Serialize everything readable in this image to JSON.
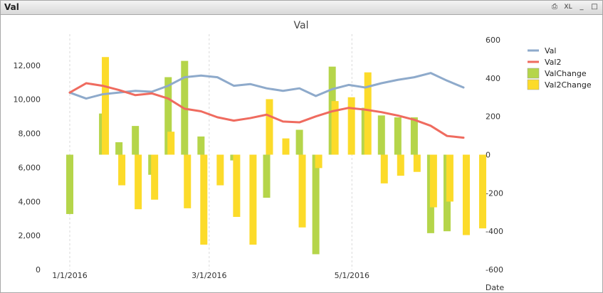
{
  "window": {
    "title": "Val",
    "buttons": {
      "print_icon": "⎙",
      "xl_label": "XL",
      "minimize_icon": "_",
      "maximize_icon": "□"
    }
  },
  "colors": {
    "val": "#8eaacb",
    "val2": "#ef6b5f",
    "valchange": "#b5d54a",
    "val2change": "#fcdb2a",
    "grid": "#d9d9d9"
  },
  "chart_data": {
    "type": "combo",
    "title": "Val",
    "xlabel": "Date",
    "ylabel": "",
    "y2label": "",
    "ylim": [
      0,
      13500
    ],
    "y2lim": [
      -600,
      600
    ],
    "y_ticks": [
      0,
      2000,
      4000,
      6000,
      8000,
      10000,
      12000
    ],
    "y_tick_labels": [
      "0",
      "2,000",
      "4,000",
      "6,000",
      "8,000",
      "10,000",
      "12,000"
    ],
    "y2_ticks": [
      -600,
      -400,
      -200,
      0,
      200,
      400,
      600
    ],
    "y2_tick_labels": [
      "-600",
      "-400",
      "-200",
      "0",
      "200",
      "400",
      "600"
    ],
    "x_tick_labels": [
      {
        "label": "1/1/2016",
        "index": 0
      },
      {
        "label": "3/1/2016",
        "index": 8.5
      },
      {
        "label": "5/1/2016",
        "index": 17.2
      }
    ],
    "legend_position": "right",
    "num_points": 25,
    "series": [
      {
        "name": "Val",
        "type": "line",
        "axis": "left",
        "values": [
          10400,
          10050,
          10300,
          10400,
          10500,
          10450,
          10800,
          11300,
          11400,
          11300,
          10800,
          10900,
          10650,
          10500,
          10650,
          10200,
          10600,
          10850,
          10700,
          10950,
          11150,
          11300,
          11550,
          11100,
          10700
        ]
      },
      {
        "name": "Val2",
        "type": "line",
        "axis": "left",
        "values": [
          10400,
          10950,
          10800,
          10550,
          10250,
          10350,
          10050,
          9450,
          9300,
          8950,
          8750,
          8900,
          9100,
          8700,
          8650,
          9000,
          9300,
          9500,
          9400,
          9250,
          9050,
          8800,
          8450,
          7850,
          7750
        ]
      },
      {
        "name": "ValChange",
        "type": "bar",
        "axis": "right",
        "values": [
          -310,
          null,
          215,
          65,
          150,
          -105,
          405,
          490,
          95,
          null,
          -30,
          null,
          -225,
          null,
          130,
          -520,
          460,
          null,
          245,
          205,
          195,
          195,
          -410,
          -400,
          null
        ]
      },
      {
        "name": "Val2Change",
        "type": "bar",
        "axis": "right",
        "values": [
          null,
          510,
          -160,
          -285,
          -235,
          120,
          -280,
          -470,
          -160,
          -325,
          -470,
          290,
          85,
          -380,
          -70,
          280,
          300,
          430,
          -150,
          -110,
          -90,
          -275,
          -245,
          -420,
          -385
        ]
      }
    ]
  }
}
